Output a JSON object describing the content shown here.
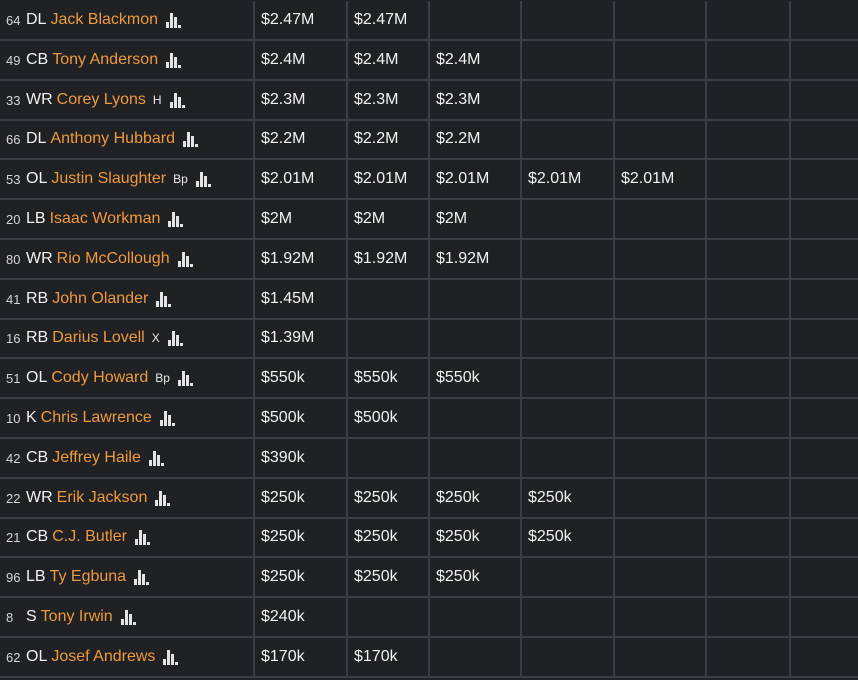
{
  "colors": {
    "background": "#1f2124",
    "gridline": "#3a3d42",
    "player_link": "#ef9a3c",
    "text": "#f2f2f2"
  },
  "icon": "bar-chart-stats-icon",
  "rows": [
    {
      "num": "64",
      "pos": "DL",
      "name": "Jack Blackmon",
      "tag": "",
      "years": [
        "$2.47M",
        "$2.47M",
        "",
        "",
        "",
        "",
        ""
      ]
    },
    {
      "num": "49",
      "pos": "CB",
      "name": "Tony Anderson",
      "tag": "",
      "years": [
        "$2.4M",
        "$2.4M",
        "$2.4M",
        "",
        "",
        "",
        ""
      ]
    },
    {
      "num": "33",
      "pos": "WR",
      "name": "Corey Lyons",
      "tag": "H",
      "years": [
        "$2.3M",
        "$2.3M",
        "$2.3M",
        "",
        "",
        "",
        ""
      ]
    },
    {
      "num": "66",
      "pos": "DL",
      "name": "Anthony Hubbard",
      "tag": "",
      "years": [
        "$2.2M",
        "$2.2M",
        "$2.2M",
        "",
        "",
        "",
        ""
      ]
    },
    {
      "num": "53",
      "pos": "OL",
      "name": "Justin Slaughter",
      "tag": "Bp",
      "years": [
        "$2.01M",
        "$2.01M",
        "$2.01M",
        "$2.01M",
        "$2.01M",
        "",
        ""
      ]
    },
    {
      "num": "20",
      "pos": "LB",
      "name": "Isaac Workman",
      "tag": "",
      "years": [
        "$2M",
        "$2M",
        "$2M",
        "",
        "",
        "",
        ""
      ]
    },
    {
      "num": "80",
      "pos": "WR",
      "name": "Rio McCollough",
      "tag": "",
      "years": [
        "$1.92M",
        "$1.92M",
        "$1.92M",
        "",
        "",
        "",
        ""
      ]
    },
    {
      "num": "41",
      "pos": "RB",
      "name": "John Olander",
      "tag": "",
      "years": [
        "$1.45M",
        "",
        "",
        "",
        "",
        "",
        ""
      ]
    },
    {
      "num": "16",
      "pos": "RB",
      "name": "Darius Lovell",
      "tag": "X",
      "years": [
        "$1.39M",
        "",
        "",
        "",
        "",
        "",
        ""
      ]
    },
    {
      "num": "51",
      "pos": "OL",
      "name": "Cody Howard",
      "tag": "Bp",
      "years": [
        "$550k",
        "$550k",
        "$550k",
        "",
        "",
        "",
        ""
      ]
    },
    {
      "num": "10",
      "pos": "K",
      "name": "Chris Lawrence",
      "tag": "",
      "years": [
        "$500k",
        "$500k",
        "",
        "",
        "",
        "",
        ""
      ]
    },
    {
      "num": "42",
      "pos": "CB",
      "name": "Jeffrey Haile",
      "tag": "",
      "years": [
        "$390k",
        "",
        "",
        "",
        "",
        "",
        ""
      ]
    },
    {
      "num": "22",
      "pos": "WR",
      "name": "Erik Jackson",
      "tag": "",
      "years": [
        "$250k",
        "$250k",
        "$250k",
        "$250k",
        "",
        "",
        ""
      ]
    },
    {
      "num": "21",
      "pos": "CB",
      "name": "C.J. Butler",
      "tag": "",
      "years": [
        "$250k",
        "$250k",
        "$250k",
        "$250k",
        "",
        "",
        ""
      ]
    },
    {
      "num": "96",
      "pos": "LB",
      "name": "Ty Egbuna",
      "tag": "",
      "years": [
        "$250k",
        "$250k",
        "$250k",
        "",
        "",
        "",
        ""
      ]
    },
    {
      "num": "8",
      "pos": "S",
      "name": "Tony Irwin",
      "tag": "",
      "years": [
        "$240k",
        "",
        "",
        "",
        "",
        "",
        ""
      ]
    },
    {
      "num": "62",
      "pos": "OL",
      "name": "Josef Andrews",
      "tag": "",
      "years": [
        "$170k",
        "$170k",
        "",
        "",
        "",
        "",
        ""
      ]
    }
  ]
}
